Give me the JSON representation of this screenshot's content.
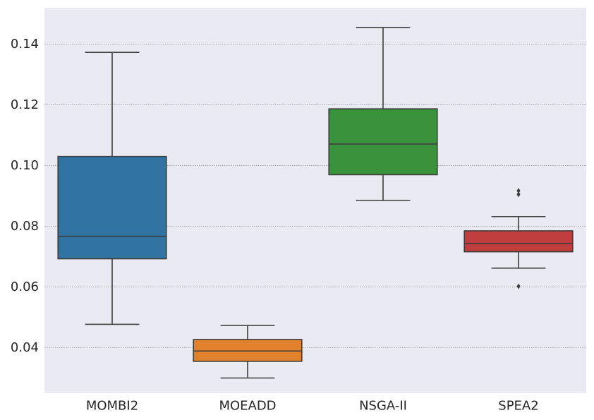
{
  "chart_data": {
    "type": "box",
    "categories": [
      "MOMBI2",
      "MOEADD",
      "NSGA-II",
      "SPEA2"
    ],
    "ylim": [
      0.025,
      0.152
    ],
    "yticks": [
      0.04,
      0.06,
      0.08,
      0.1,
      0.12,
      0.14
    ],
    "ytick_labels": [
      "0.04",
      "0.06",
      "0.08",
      "0.10",
      "0.12",
      "0.14"
    ],
    "grid": true,
    "colors": {
      "background": "#eaeaf2",
      "MOMBI2": "#3274a1",
      "MOEADD": "#e1812c",
      "NSGA-II": "#3a923a",
      "SPEA2": "#c03d3e"
    },
    "boxes": [
      {
        "name": "MOMBI2",
        "whisker_low": 0.0477,
        "q1": 0.0693,
        "median": 0.0767,
        "q3": 0.103,
        "whisker_high": 0.1373,
        "outliers": []
      },
      {
        "name": "MOEADD",
        "whisker_low": 0.03,
        "q1": 0.0355,
        "median": 0.0389,
        "q3": 0.0427,
        "whisker_high": 0.0473,
        "outliers": []
      },
      {
        "name": "NSGA-II",
        "whisker_low": 0.0885,
        "q1": 0.097,
        "median": 0.1071,
        "q3": 0.1187,
        "whisker_high": 0.1455,
        "outliers": []
      },
      {
        "name": "SPEA2",
        "whisker_low": 0.0662,
        "q1": 0.0716,
        "median": 0.0743,
        "q3": 0.0785,
        "whisker_high": 0.0832,
        "outliers": [
          0.0602,
          0.0905,
          0.0917
        ]
      }
    ]
  }
}
